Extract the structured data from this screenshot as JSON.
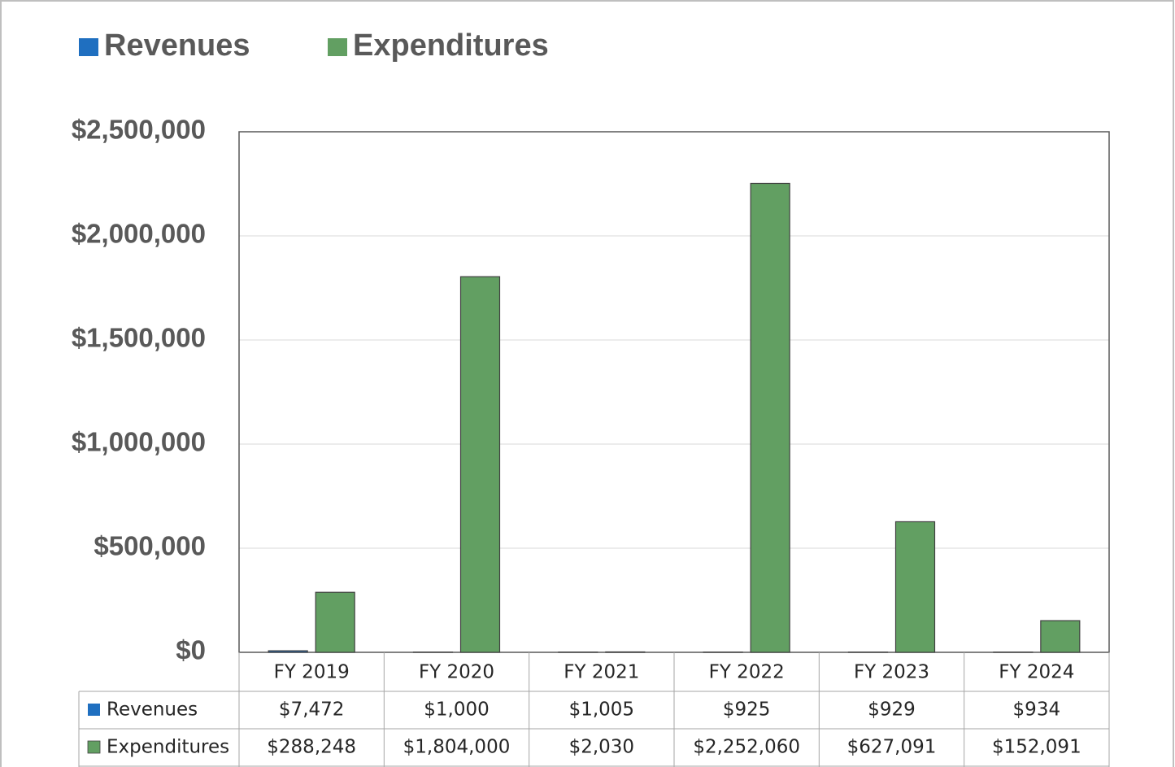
{
  "chart_data": {
    "type": "bar",
    "categories": [
      "FY 2019",
      "FY 2020",
      "FY 2021",
      "FY 2022",
      "FY 2023",
      "FY 2024"
    ],
    "series": [
      {
        "name": "Revenues",
        "color": "#1f6fc0",
        "values": [
          7472,
          1000,
          1005,
          925,
          929,
          934
        ],
        "value_labels": [
          "$7,472",
          "$1,000",
          "$1,005",
          "$925",
          "$929",
          "$934"
        ]
      },
      {
        "name": "Expenditures",
        "color": "#629f62",
        "values": [
          288248,
          1804000,
          2030,
          2252060,
          627091,
          152091
        ],
        "value_labels": [
          "$288,248",
          "$1,804,000",
          "$2,030",
          "$2,252,060",
          "$627,091",
          "$152,091"
        ]
      }
    ],
    "ylim": [
      0,
      2500000
    ],
    "yticks": [
      {
        "value": 0,
        "label": "$0"
      },
      {
        "value": 500000,
        "label": "$500,000"
      },
      {
        "value": 1000000,
        "label": "$1,000,000"
      },
      {
        "value": 1500000,
        "label": "$1,500,000"
      },
      {
        "value": 2000000,
        "label": "$2,000,000"
      },
      {
        "value": 2500000,
        "label": "$2,500,000"
      }
    ],
    "grid": true,
    "legend": "top"
  }
}
